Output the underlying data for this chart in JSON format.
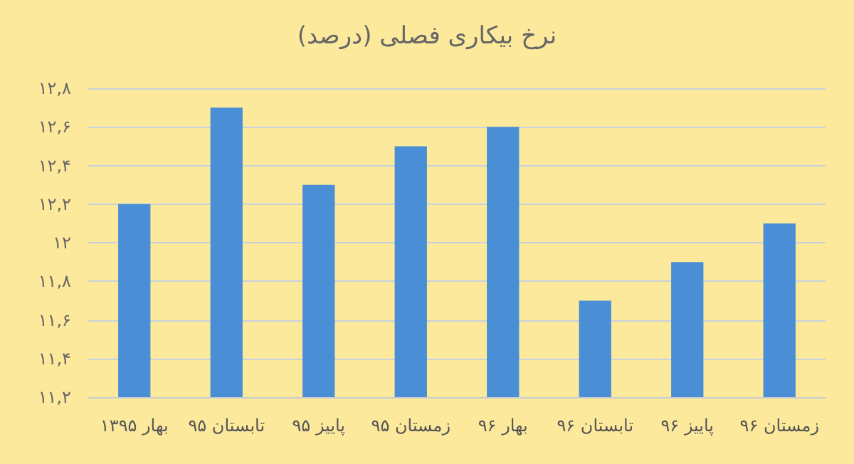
{
  "chart_data": {
    "type": "bar",
    "title": "نرخ بیکاری فصلی (درصد)",
    "categories": [
      "بهار ۱۳۹۵",
      "تابستان ۹۵",
      "پاییز ۹۵",
      "زمستان ۹۵",
      "بهار ۹۶",
      "تابستان ۹۶",
      "پاییز ۹۶",
      "زمستان ۹۶"
    ],
    "values": [
      12.2,
      12.7,
      12.3,
      12.5,
      12.6,
      11.7,
      11.9,
      12.1
    ],
    "color": "#4a8fd6",
    "ylim": [
      11.2,
      12.8
    ],
    "yticks": [
      {
        "value": 11.2,
        "label": "۱۱,۲"
      },
      {
        "value": 11.4,
        "label": "۱۱,۴"
      },
      {
        "value": 11.6,
        "label": "۱۱,۶"
      },
      {
        "value": 11.8,
        "label": "۱۱,۸"
      },
      {
        "value": 12,
        "label": "۱۲"
      },
      {
        "value": 12.2,
        "label": "۱۲,۲"
      },
      {
        "value": 12.4,
        "label": "۱۲,۴"
      },
      {
        "value": 12.6,
        "label": "۱۲,۶"
      },
      {
        "value": 12.8,
        "label": "۱۲,۸"
      }
    ],
    "grid": "y"
  }
}
